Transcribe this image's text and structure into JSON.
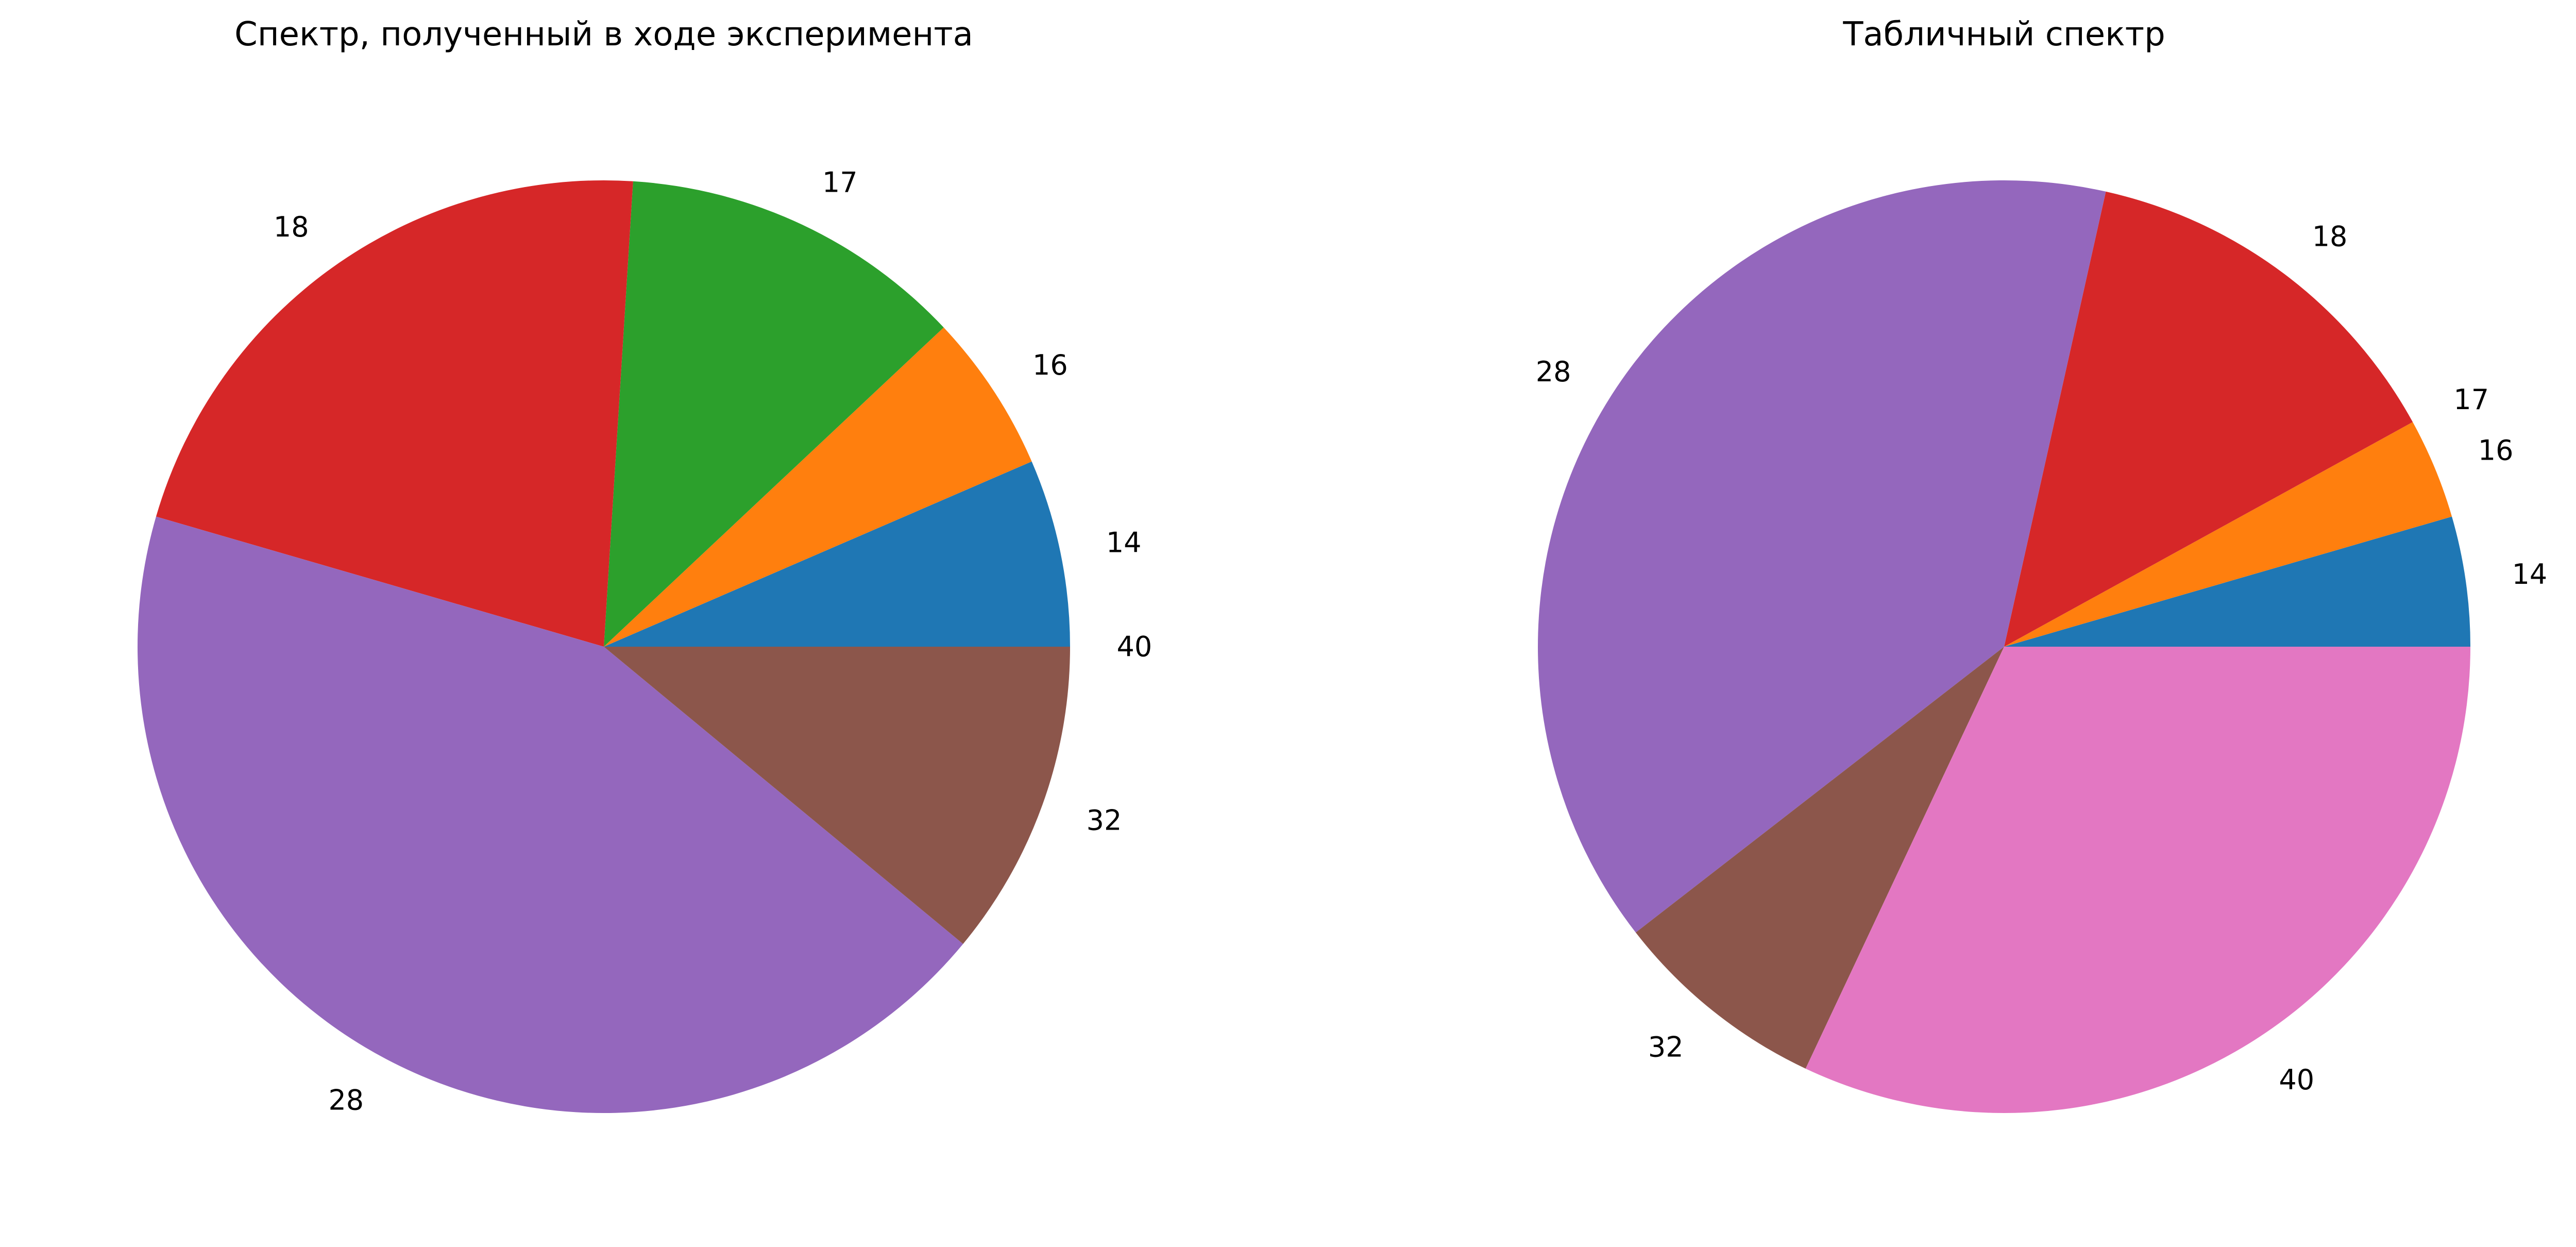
{
  "chart_data": [
    {
      "type": "pie",
      "title": "Спектр, полученный в ходе эксперимента",
      "labels": [
        "14",
        "16",
        "17",
        "18",
        "28",
        "32",
        "40"
      ],
      "values": [
        6.5,
        5.5,
        12.0,
        21.5,
        43.5,
        11.0,
        0.0
      ],
      "colors": [
        "#1f77b4",
        "#ff7f0e",
        "#2ca02c",
        "#d62728",
        "#9467bd",
        "#8c564b",
        "#e377c2"
      ]
    },
    {
      "type": "pie",
      "title": "Табличный спектр",
      "labels": [
        "14",
        "16",
        "17",
        "18",
        "28",
        "32",
        "40"
      ],
      "values": [
        4.5,
        3.5,
        0.0,
        13.5,
        39.0,
        7.5,
        32.0
      ],
      "colors": [
        "#1f77b4",
        "#ff7f0e",
        "#2ca02c",
        "#d62728",
        "#9467bd",
        "#8c564b",
        "#e377c2"
      ]
    }
  ]
}
